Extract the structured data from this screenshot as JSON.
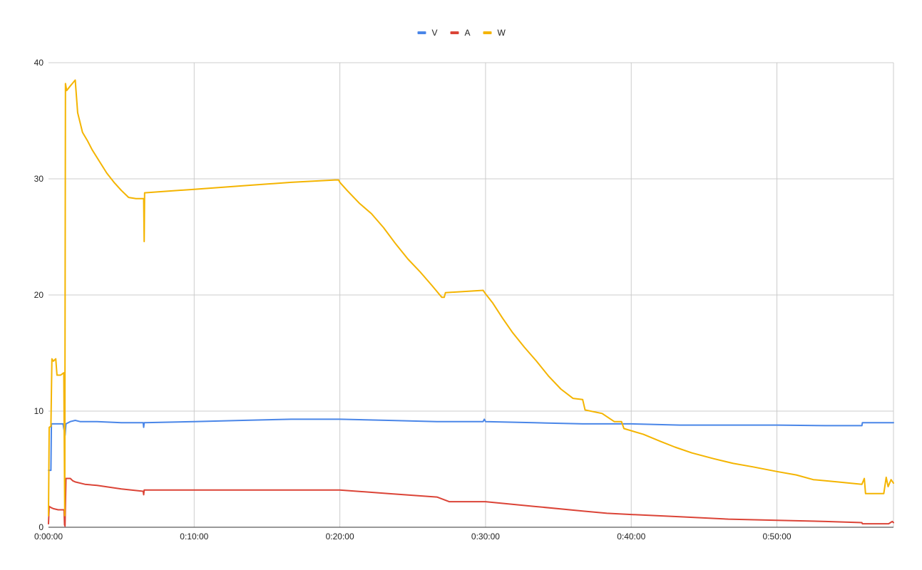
{
  "chart_data": {
    "type": "line",
    "title": "",
    "xlabel": "",
    "ylabel": "",
    "legend_position": "top",
    "grid": true,
    "xlim": [
      0,
      3480
    ],
    "ylim": [
      0,
      40
    ],
    "x_ticks": [
      0,
      600,
      1200,
      1800,
      2400,
      3000
    ],
    "x_tick_labels": [
      "0:00:00",
      "0:10:00",
      "0:20:00",
      "0:30:00",
      "0:40:00",
      "0:50:00"
    ],
    "y_ticks": [
      0,
      10,
      20,
      30,
      40
    ],
    "y_tick_labels": [
      "0",
      "10",
      "20",
      "30",
      "40"
    ],
    "series": [
      {
        "name": "V",
        "color": "#4a86e8",
        "points": [
          [
            0,
            4.9
          ],
          [
            10,
            4.9
          ],
          [
            12,
            8.9
          ],
          [
            40,
            8.9
          ],
          [
            60,
            8.9
          ],
          [
            68,
            7.9
          ],
          [
            72,
            8.9
          ],
          [
            90,
            9.1
          ],
          [
            110,
            9.2
          ],
          [
            130,
            9.1
          ],
          [
            200,
            9.1
          ],
          [
            300,
            9.0
          ],
          [
            390,
            9.0
          ],
          [
            392,
            8.6
          ],
          [
            394,
            9.0
          ],
          [
            600,
            9.1
          ],
          [
            800,
            9.2
          ],
          [
            1000,
            9.3
          ],
          [
            1180,
            9.3
          ],
          [
            1200,
            9.3
          ],
          [
            1400,
            9.2
          ],
          [
            1600,
            9.1
          ],
          [
            1790,
            9.1
          ],
          [
            1795,
            9.3
          ],
          [
            1800,
            9.1
          ],
          [
            2000,
            9.0
          ],
          [
            2200,
            8.9
          ],
          [
            2400,
            8.9
          ],
          [
            2600,
            8.8
          ],
          [
            2800,
            8.8
          ],
          [
            3000,
            8.8
          ],
          [
            3200,
            8.75
          ],
          [
            3350,
            8.75
          ],
          [
            3352,
            9.0
          ],
          [
            3480,
            9.0
          ]
        ]
      },
      {
        "name": "A",
        "color": "#db4437",
        "points": [
          [
            0,
            0.3
          ],
          [
            3,
            1.8
          ],
          [
            10,
            1.7
          ],
          [
            20,
            1.6
          ],
          [
            40,
            1.5
          ],
          [
            64,
            1.5
          ],
          [
            66,
            0.2
          ],
          [
            68,
            0.1
          ],
          [
            72,
            4.2
          ],
          [
            90,
            4.2
          ],
          [
            100,
            4.0
          ],
          [
            110,
            3.9
          ],
          [
            150,
            3.7
          ],
          [
            200,
            3.6
          ],
          [
            300,
            3.3
          ],
          [
            390,
            3.1
          ],
          [
            392,
            2.8
          ],
          [
            394,
            3.2
          ],
          [
            600,
            3.2
          ],
          [
            800,
            3.2
          ],
          [
            1000,
            3.2
          ],
          [
            1200,
            3.2
          ],
          [
            1400,
            2.9
          ],
          [
            1600,
            2.6
          ],
          [
            1650,
            2.2
          ],
          [
            1800,
            2.2
          ],
          [
            2000,
            1.8
          ],
          [
            2200,
            1.4
          ],
          [
            2300,
            1.2
          ],
          [
            2400,
            1.1
          ],
          [
            2600,
            0.9
          ],
          [
            2800,
            0.7
          ],
          [
            3000,
            0.6
          ],
          [
            3200,
            0.5
          ],
          [
            3350,
            0.4
          ],
          [
            3352,
            0.3
          ],
          [
            3460,
            0.3
          ],
          [
            3475,
            0.5
          ],
          [
            3480,
            0.4
          ]
        ]
      },
      {
        "name": "W",
        "color": "#f4b400",
        "points": [
          [
            0,
            1.0
          ],
          [
            3,
            8.6
          ],
          [
            10,
            8.7
          ],
          [
            14,
            14.5
          ],
          [
            20,
            14.3
          ],
          [
            30,
            14.5
          ],
          [
            35,
            13.1
          ],
          [
            50,
            13.1
          ],
          [
            63,
            13.3
          ],
          [
            67,
            1.0
          ],
          [
            70,
            38.2
          ],
          [
            75,
            37.6
          ],
          [
            90,
            38.0
          ],
          [
            110,
            38.5
          ],
          [
            120,
            35.7
          ],
          [
            140,
            34.0
          ],
          [
            160,
            33.3
          ],
          [
            180,
            32.5
          ],
          [
            210,
            31.5
          ],
          [
            240,
            30.5
          ],
          [
            270,
            29.7
          ],
          [
            300,
            29.0
          ],
          [
            330,
            28.4
          ],
          [
            360,
            28.3
          ],
          [
            392,
            28.3
          ],
          [
            394,
            24.6
          ],
          [
            396,
            28.8
          ],
          [
            600,
            29.1
          ],
          [
            800,
            29.4
          ],
          [
            1000,
            29.7
          ],
          [
            1180,
            29.9
          ],
          [
            1195,
            29.9
          ],
          [
            1200,
            29.7
          ],
          [
            1230,
            29.0
          ],
          [
            1280,
            27.9
          ],
          [
            1330,
            27.0
          ],
          [
            1380,
            25.8
          ],
          [
            1430,
            24.4
          ],
          [
            1480,
            23.1
          ],
          [
            1530,
            22.0
          ],
          [
            1580,
            20.8
          ],
          [
            1620,
            19.8
          ],
          [
            1630,
            19.8
          ],
          [
            1635,
            20.2
          ],
          [
            1790,
            20.4
          ],
          [
            1800,
            20.1
          ],
          [
            1830,
            19.3
          ],
          [
            1870,
            18.0
          ],
          [
            1910,
            16.8
          ],
          [
            1960,
            15.5
          ],
          [
            2010,
            14.3
          ],
          [
            2060,
            13.0
          ],
          [
            2110,
            11.9
          ],
          [
            2160,
            11.1
          ],
          [
            2200,
            11.0
          ],
          [
            2210,
            10.1
          ],
          [
            2280,
            9.8
          ],
          [
            2330,
            9.1
          ],
          [
            2360,
            9.1
          ],
          [
            2370,
            8.5
          ],
          [
            2450,
            8.0
          ],
          [
            2520,
            7.4
          ],
          [
            2580,
            6.9
          ],
          [
            2650,
            6.4
          ],
          [
            2740,
            5.9
          ],
          [
            2820,
            5.5
          ],
          [
            2900,
            5.2
          ],
          [
            3000,
            4.8
          ],
          [
            3080,
            4.5
          ],
          [
            3150,
            4.1
          ],
          [
            3250,
            3.9
          ],
          [
            3350,
            3.7
          ],
          [
            3360,
            4.2
          ],
          [
            3365,
            2.9
          ],
          [
            3440,
            2.9
          ],
          [
            3450,
            4.3
          ],
          [
            3458,
            3.5
          ],
          [
            3470,
            4.1
          ],
          [
            3480,
            3.8
          ]
        ]
      }
    ]
  }
}
